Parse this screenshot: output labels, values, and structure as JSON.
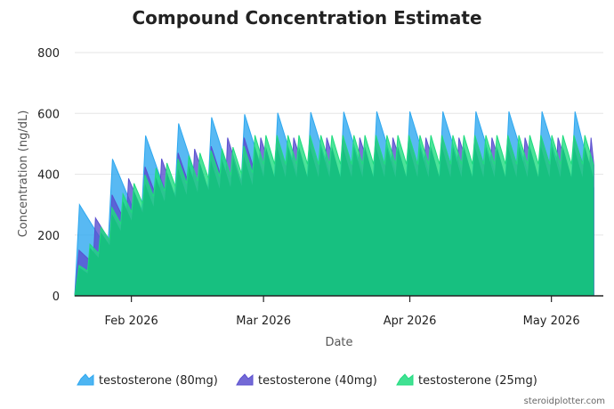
{
  "chart_data": {
    "type": "area",
    "title": "Compound Concentration Estimate",
    "xlabel": "Date",
    "ylabel": "Concentration (ng/dL)",
    "ylim": [
      0,
      800
    ],
    "yticks": [
      "0",
      "200",
      "400",
      "600",
      "800"
    ],
    "xlim": [
      "2026-01-20",
      "2026-05-12"
    ],
    "xticks": [
      {
        "date": "2026-02-01",
        "label": "Feb 2026"
      },
      {
        "date": "2026-03-01",
        "label": "Mar 2026"
      },
      {
        "date": "2026-04-01",
        "label": "Apr 2026"
      },
      {
        "date": "2026-05-01",
        "label": "May 2026"
      }
    ],
    "grid": true,
    "legend_position": "bottom",
    "series": [
      {
        "name": "testosterone (80mg)",
        "color": "#2ea8f0",
        "dose_interval_days": 7,
        "peaks": [
          {
            "date": "2026-01-21",
            "value": 300
          },
          {
            "date": "2026-01-28",
            "value": 450
          },
          {
            "date": "2026-02-04",
            "value": 527
          },
          {
            "date": "2026-02-11",
            "value": 567
          },
          {
            "date": "2026-02-18",
            "value": 587
          },
          {
            "date": "2026-02-25",
            "value": 597
          },
          {
            "date": "2026-03-04",
            "value": 602
          },
          {
            "date": "2026-03-11",
            "value": 604
          },
          {
            "date": "2026-03-18",
            "value": 605
          },
          {
            "date": "2026-03-25",
            "value": 606
          },
          {
            "date": "2026-04-01",
            "value": 606
          },
          {
            "date": "2026-04-08",
            "value": 606
          },
          {
            "date": "2026-04-15",
            "value": 606
          },
          {
            "date": "2026-04-22",
            "value": 606
          },
          {
            "date": "2026-04-29",
            "value": 606
          },
          {
            "date": "2026-05-06",
            "value": 606
          }
        ],
        "troughs": [
          {
            "date": "2026-01-27",
            "value": 150
          },
          {
            "date": "2026-02-03",
            "value": 225
          },
          {
            "date": "2026-02-10",
            "value": 264
          },
          {
            "date": "2026-02-17",
            "value": 284
          },
          {
            "date": "2026-02-24",
            "value": 294
          },
          {
            "date": "2026-03-03",
            "value": 298
          },
          {
            "date": "2026-03-10",
            "value": 301
          },
          {
            "date": "2026-03-17",
            "value": 302
          },
          {
            "date": "2026-03-24",
            "value": 303
          },
          {
            "date": "2026-03-31",
            "value": 303
          },
          {
            "date": "2026-04-07",
            "value": 303
          },
          {
            "date": "2026-04-14",
            "value": 303
          },
          {
            "date": "2026-04-21",
            "value": 303
          },
          {
            "date": "2026-04-28",
            "value": 303
          },
          {
            "date": "2026-05-05",
            "value": 303
          },
          {
            "date": "2026-05-10",
            "value": 355
          }
        ]
      },
      {
        "name": "testosterone (40mg)",
        "color": "#5a4fcf",
        "dose_interval_days": 3.5,
        "peaks_first": [
          150,
          256,
          332,
          386,
          424,
          451,
          470,
          483,
          492
        ],
        "peak_steady": 520,
        "trough_ratio": 0.71,
        "last_value": 430
      },
      {
        "name": "testosterone (25mg)",
        "color": "#1fdc7f",
        "dose_interval_days": 2.33,
        "peaks_first": [
          100,
          170,
          225,
          290,
          335,
          370,
          398,
          420,
          437,
          450,
          461,
          470,
          478,
          484,
          489,
          493
        ],
        "peak_steady": 528,
        "trough_ratio": 0.82,
        "last_value": 505
      }
    ]
  },
  "credit": "steroidplotter.com"
}
